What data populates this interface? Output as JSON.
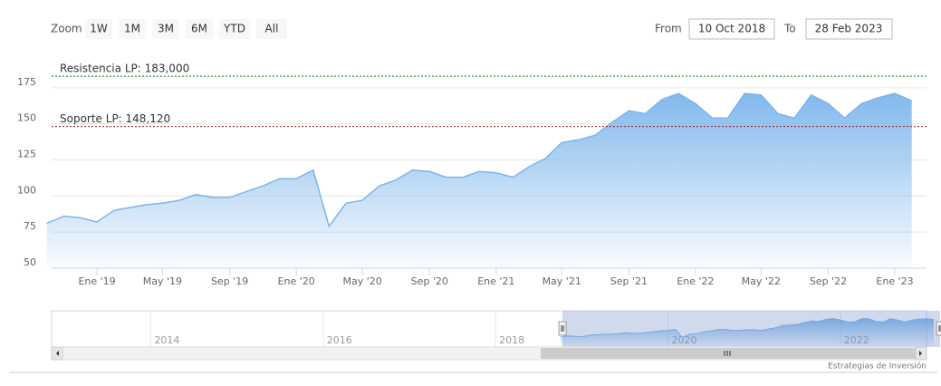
{
  "chart_data": {
    "type": "area",
    "zoom_label": "Zoom",
    "range_buttons": [
      "1W",
      "1M",
      "3M",
      "6M",
      "YTD",
      "All"
    ],
    "from_label": "From",
    "from": "10 Oct 2018",
    "to_label": "To",
    "to": "28 Feb 2023",
    "credits": "Estrategias de Inversión",
    "x": [
      "2018-10",
      "2018-11",
      "2018-12",
      "2019-01",
      "2019-02",
      "2019-03",
      "2019-04",
      "2019-05",
      "2019-06",
      "2019-07",
      "2019-08",
      "2019-09",
      "2019-10",
      "2019-11",
      "2019-12",
      "2020-01",
      "2020-02",
      "2020-03",
      "2020-04",
      "2020-05",
      "2020-06",
      "2020-07",
      "2020-08",
      "2020-09",
      "2020-10",
      "2020-11",
      "2020-12",
      "2021-01",
      "2021-02",
      "2021-03",
      "2021-04",
      "2021-05",
      "2021-06",
      "2021-07",
      "2021-08",
      "2021-09",
      "2021-10",
      "2021-11",
      "2021-12",
      "2022-01",
      "2022-02",
      "2022-03",
      "2022-04",
      "2022-05",
      "2022-06",
      "2022-07",
      "2022-08",
      "2022-09",
      "2022-10",
      "2022-11",
      "2022-12",
      "2023-01",
      "2023-02"
    ],
    "series": [
      {
        "color": "#7cb5ec",
        "values": [
          81,
          86,
          85,
          82,
          90,
          92,
          94,
          95,
          97,
          101,
          99,
          99,
          103,
          107,
          112,
          112,
          118,
          79,
          95,
          97,
          107,
          111,
          118,
          117,
          113,
          113,
          117,
          116,
          113,
          120,
          126,
          137,
          139,
          142,
          151,
          159,
          157,
          167,
          171,
          164,
          154,
          154,
          171,
          170,
          157,
          154,
          170,
          164,
          154,
          164,
          168,
          171,
          166
        ]
      }
    ],
    "xlim": [
      "2018-10-10",
      "2023-02-28"
    ],
    "xticks": [
      {
        "value": "2019-01",
        "label": "Ene '19"
      },
      {
        "value": "2019-05",
        "label": "May '19"
      },
      {
        "value": "2019-09",
        "label": "Sep '19"
      },
      {
        "value": "2020-01",
        "label": "Ene '20"
      },
      {
        "value": "2020-05",
        "label": "May '20"
      },
      {
        "value": "2020-09",
        "label": "Sep '20"
      },
      {
        "value": "2021-01",
        "label": "Ene '21"
      },
      {
        "value": "2021-05",
        "label": "May '21"
      },
      {
        "value": "2021-09",
        "label": "Sep '21"
      },
      {
        "value": "2022-01",
        "label": "Ene '22"
      },
      {
        "value": "2022-05",
        "label": "May '22"
      },
      {
        "value": "2022-09",
        "label": "Sep '22"
      },
      {
        "value": "2023-01",
        "label": "Ene '23"
      }
    ],
    "ylim": [
      50,
      200
    ],
    "yticks": [
      50,
      75,
      100,
      125,
      150,
      175
    ],
    "grid": true,
    "plot_lines": [
      {
        "label": "Resistencia LP: 183,000",
        "value": 183,
        "color": "#1a6b1a"
      },
      {
        "label": "Soporte LP: 148,120",
        "value": 148.12,
        "color": "#8b1a1a"
      }
    ],
    "navigator": {
      "xlim": [
        2012.85,
        2023.0
      ],
      "xticks": [
        2014,
        2016,
        2018,
        2020,
        2022
      ]
    }
  }
}
